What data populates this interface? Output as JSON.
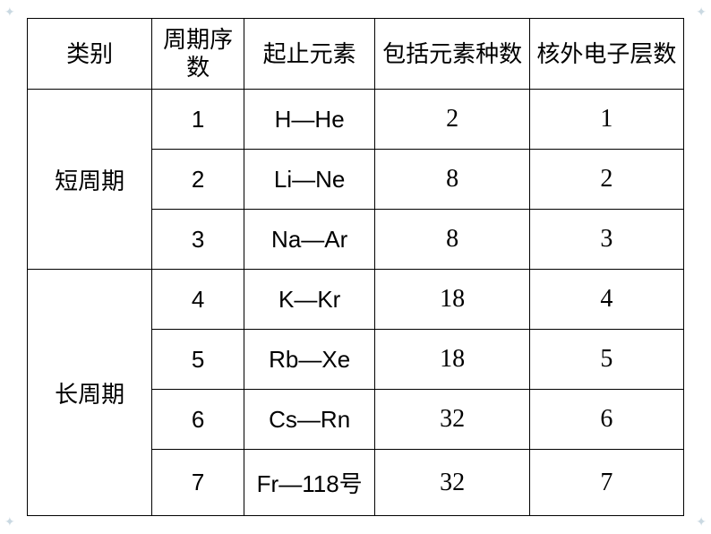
{
  "table": {
    "headers": {
      "category": "类别",
      "period_num": "周期序数",
      "range": "起止元素",
      "element_count": "包括元素种数",
      "electron_shells": "核外电子层数"
    },
    "groups": [
      {
        "category_label": "短周期",
        "rows": [
          {
            "period": "1",
            "range": "H—He",
            "count": "2",
            "shells": "1"
          },
          {
            "period": "2",
            "range": "Li—Ne",
            "count": "8",
            "shells": "2"
          },
          {
            "period": "3",
            "range": "Na—Ar",
            "count": "8",
            "shells": "3"
          }
        ]
      },
      {
        "category_label": "长周期",
        "rows": [
          {
            "period": "4",
            "range": "K—Kr",
            "count": "18",
            "shells": "4"
          },
          {
            "period": "5",
            "range": "Rb—Xe",
            "count": "18",
            "shells": "5"
          },
          {
            "period": "6",
            "range": "Cs—Rn",
            "count": "32",
            "shells": "6"
          },
          {
            "period": "7",
            "range": "Fr—118号",
            "count": "32",
            "shells": "7"
          }
        ]
      }
    ],
    "style": {
      "border_color": "#000000",
      "background_color": "#ffffff",
      "header_fontsize": 26,
      "cell_fontsize": 26,
      "serif_fontsize": 28,
      "text_color": "#000000",
      "decoration_color": "#a8c0d0"
    }
  }
}
